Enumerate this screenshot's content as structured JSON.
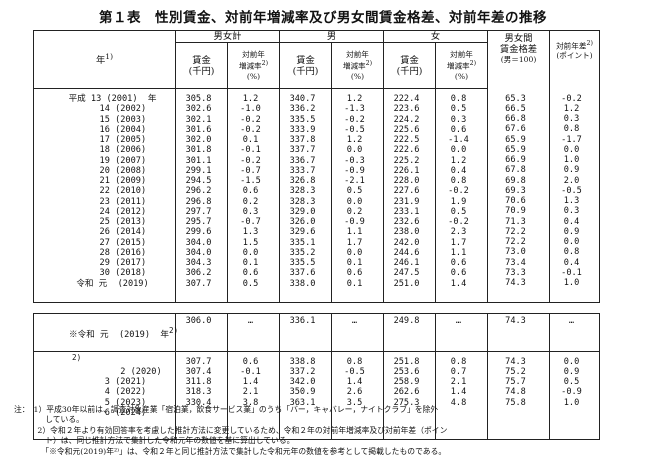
{
  "title": "第１表　性別賃金、対前年増減率及び男女間賃金格差、対前年差の推移",
  "header": {
    "year": "年",
    "year_note": "1)",
    "group_total": "男女計",
    "group_male": "男",
    "group_female": "女",
    "gap_title": "男女間",
    "gap_title2": "賃金格差",
    "gap_sub": "(男＝100)",
    "wage": "賃金",
    "unit": "(千円)",
    "rate1": "対前年",
    "rate2": "増減率",
    "rate_note": "2)",
    "pct": "(%)",
    "diff1": "対前年差",
    "diff_note": "2)",
    "diff_unit": "(ポイント)"
  },
  "main_rows": {
    "years": "平成 13 (2001)  年\n    14 (2002)\n    15 (2003)\n    16 (2004)\n    17 (2005)\n    18 (2006)\n    19 (2007)\n    20 (2008)\n    21 (2009)\n    22 (2010)\n    23 (2011)\n    24 (2012)\n    25 (2013)\n    26 (2014)\n    27 (2015)\n    28 (2016)\n    29 (2017)\n    30 (2018)\n令和 元  (2019)",
    "total_wage": "305.8\n302.6\n302.1\n301.6\n302.0\n301.8\n301.1\n299.1\n294.5\n296.2\n296.8\n297.7\n295.7\n299.6\n304.0\n304.0\n304.3\n306.2\n307.7",
    "total_rate": "1.2\n-1.0\n-0.2\n-0.2\n0.1\n-0.1\n-0.2\n-0.7\n-1.5\n0.6\n0.2\n0.3\n-0.7\n1.3\n1.5\n0.0\n0.1\n0.6\n0.5",
    "male_wage": "340.7\n336.2\n335.5\n333.9\n337.8\n337.7\n336.7\n333.7\n326.8\n328.3\n328.3\n329.0\n326.0\n329.6\n335.1\n335.2\n335.5\n337.6\n338.0",
    "male_rate": "1.2\n-1.3\n-0.2\n-0.5\n1.2\n0.0\n-0.3\n-0.9\n-2.1\n0.5\n0.0\n0.2\n-0.9\n1.1\n1.7\n0.0\n0.1\n0.6\n0.1",
    "female_wage": "222.4\n223.6\n224.2\n225.6\n222.5\n222.6\n225.2\n226.1\n228.0\n227.6\n231.9\n233.1\n232.6\n238.0\n242.0\n244.6\n246.1\n247.5\n251.0",
    "female_rate": "0.8\n0.5\n0.3\n0.6\n-1.4\n0.0\n1.2\n0.4\n0.8\n-0.2\n1.9\n0.5\n-0.2\n2.3\n1.7\n1.1\n0.6\n0.6\n1.4",
    "gap": "65.3\n66.5\n66.8\n67.6\n65.9\n65.9\n66.9\n67.8\n69.8\n69.3\n70.6\n70.9\n71.3\n72.2\n72.2\n73.0\n73.4\n73.3\n74.3",
    "gap_diff": "-0.2\n1.2\n0.3\n0.8\n-1.7\n0.0\n1.0\n0.9\n2.0\n-0.5\n1.3\n0.3\n0.4\n0.9\n0.0\n0.8\n0.4\n-0.1\n1.0"
  },
  "sub_rows": {
    "base_year": "※令和 元  (2019)  年",
    "base_note": "2)",
    "base_total_wage": "306.0",
    "base_total_rate": "…",
    "base_male_wage": "336.1",
    "base_male_rate": "…",
    "base_female_wage": "249.8",
    "base_female_rate": "…",
    "base_gap": "74.3",
    "base_gap_diff": "…",
    "years": "     2 (2020)\n     3 (2021)\n     4 (2022)\n     5 (2023)\n     6 (2024)",
    "year_note_2020": "2)",
    "total_wage": "307.7\n307.4\n311.8\n318.3\n330.4",
    "total_rate": "0.6\n-0.1\n1.4\n2.1\n3.8",
    "male_wage": "338.8\n337.2\n342.0\n350.9\n363.1",
    "male_rate": "0.8\n-0.5\n1.4\n2.6\n3.5",
    "female_wage": "251.8\n253.6\n258.9\n262.6\n275.3",
    "female_rate": "0.8\n0.7\n2.1\n1.4\n4.8",
    "gap": "74.3\n75.2\n75.7\n74.8\n75.8",
    "gap_diff": "0.0\n0.9\n0.5\n-0.9\n1.0"
  },
  "notes": [
    "注：　1）平成30年以前は、調査対象産業「宿泊業，飲食サービス業」のうち「バー，キャバレー，ナイトクラブ」を除外",
    "　　　　している。",
    "　　　2）令和２年より有効回答率を考慮した推計方法に変更しているため、令和２年の対前年増減率及び対前年差（ポイン",
    "　　　　ト）は、同じ推計方法で集計した令和元年の数値を基に算出している。",
    "　　　　「※令和元(2019)年²⁾」は、令和２年と同じ推計方法で集計した令和元年の数値を参考として掲載したものである。"
  ]
}
